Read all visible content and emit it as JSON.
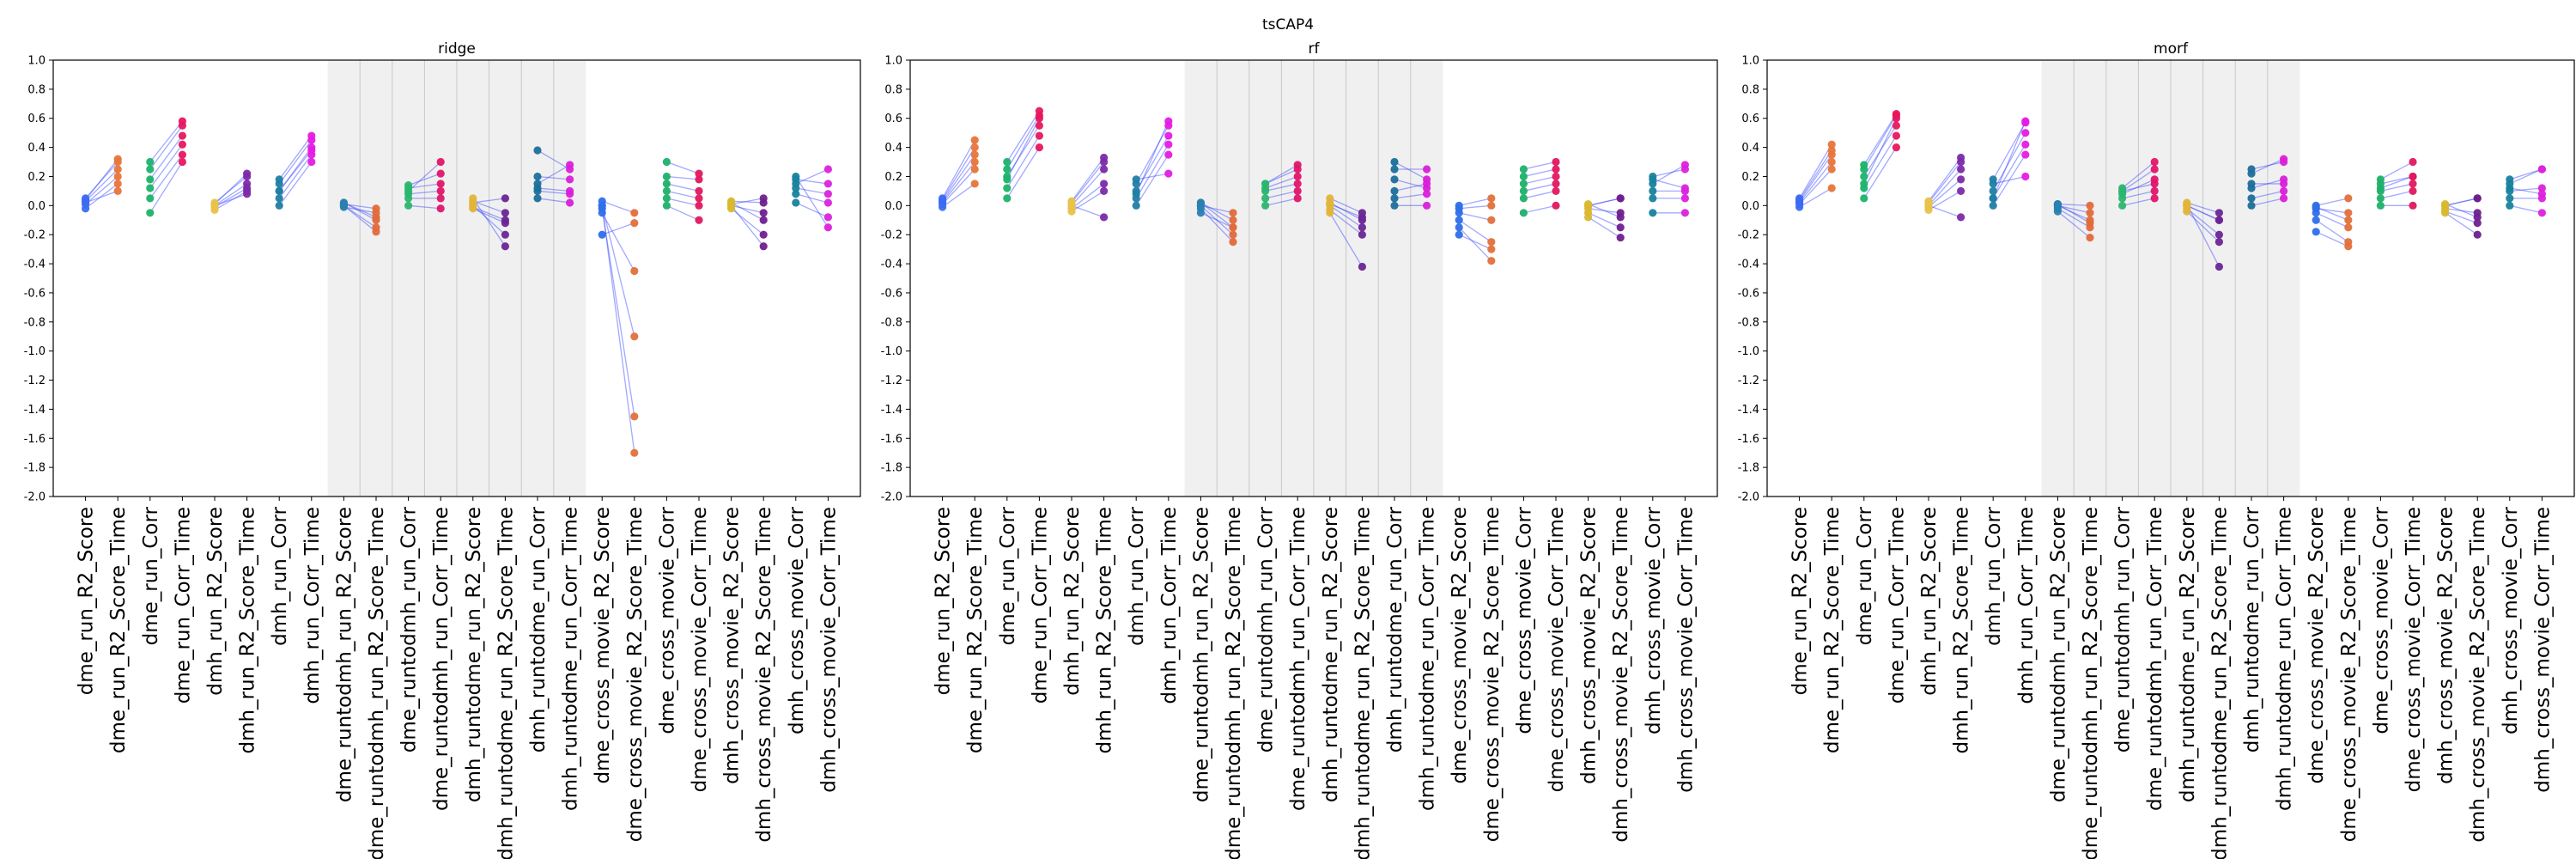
{
  "figure_title": "tsCAP4",
  "chart_data": [
    {
      "type": "scatter",
      "title": "ridge",
      "ylim": [
        -2.0,
        1.0
      ],
      "yticks": [
        "1.0",
        "0.8",
        "0.6",
        "0.4",
        "0.2",
        "0.0",
        "-0.2",
        "-0.4",
        "-0.6",
        "-0.8",
        "-1.0",
        "-1.2",
        "-1.4",
        "-1.6",
        "-1.8",
        "-2.0"
      ],
      "categories": [
        "dme_run_R2_Score",
        "dme_run_R2_Score_Time",
        "dme_run_Corr",
        "dme_run_Corr_Time",
        "dmh_run_R2_Score",
        "dmh_run_R2_Score_Time",
        "dmh_run_Corr",
        "dmh_run_Corr_Time",
        "dme_runtodmh_run_R2_Score",
        "dme_runtodmh_run_R2_Score_Time",
        "dme_runtodmh_run_Corr",
        "dme_runtodmh_run_Corr_Time",
        "dmh_runtodme_run_R2_Score",
        "dmh_runtodme_run_R2_Score_Time",
        "dmh_runtodme_run_Corr",
        "dmh_runtodme_run_Corr_Time",
        "dme_cross_movie_R2_Score",
        "dme_cross_movie_R2_Score_Time",
        "dme_cross_movie_Corr",
        "dme_cross_movie_Corr_Time",
        "dmh_cross_movie_R2_Score",
        "dmh_cross_movie_R2_Score_Time",
        "dmh_cross_movie_Corr",
        "dmh_cross_movie_Corr_Time"
      ],
      "shaded_categories": [
        8,
        15
      ],
      "paired": [
        [
          0,
          1
        ],
        [
          2,
          3
        ],
        [
          4,
          5
        ],
        [
          6,
          7
        ],
        [
          8,
          9
        ],
        [
          10,
          11
        ],
        [
          12,
          13
        ],
        [
          14,
          15
        ],
        [
          16,
          17
        ],
        [
          18,
          19
        ],
        [
          20,
          21
        ],
        [
          22,
          23
        ]
      ],
      "series": [
        {
          "values": [
            0.05,
            0.3,
            0.25,
            0.55,
            0.02,
            0.2,
            0.15,
            0.45,
            0.02,
            -0.1,
            0.12,
            0.15,
            0.03,
            -0.05,
            0.2,
            0.18,
            0.03,
            -0.05,
            0.2,
            0.18,
            0.03,
            0.02,
            0.18,
            0.15
          ]
        },
        {
          "values": [
            0.03,
            0.25,
            0.18,
            0.48,
            0.0,
            0.15,
            0.1,
            0.4,
            0.0,
            -0.15,
            0.08,
            0.1,
            -0.02,
            -0.12,
            0.12,
            0.1,
            0.0,
            -1.7,
            0.15,
            0.1,
            0.0,
            -0.05,
            0.12,
            0.08
          ]
        },
        {
          "values": [
            0.01,
            0.2,
            0.12,
            0.42,
            -0.01,
            0.12,
            0.05,
            0.35,
            -0.01,
            -0.05,
            0.05,
            0.05,
            0.0,
            -0.2,
            0.1,
            0.08,
            -0.02,
            -1.45,
            0.1,
            0.05,
            -0.02,
            -0.2,
            0.08,
            0.02
          ]
        },
        {
          "values": [
            -0.02,
            0.15,
            0.05,
            0.35,
            -0.03,
            0.1,
            0.0,
            0.3,
            0.0,
            -0.18,
            0.0,
            -0.02,
            0.05,
            -0.28,
            0.05,
            0.02,
            0.0,
            -0.9,
            0.05,
            0.0,
            0.02,
            -0.1,
            0.02,
            -0.08
          ]
        },
        {
          "values": [
            0.02,
            0.1,
            -0.05,
            0.3,
            0.0,
            0.08,
            0.1,
            0.38,
            0.01,
            -0.02,
            0.1,
            0.3,
            -0.01,
            -0.1,
            0.38,
            0.25,
            -0.05,
            -0.45,
            0.0,
            -0.1,
            0.0,
            -0.28,
            0.2,
            -0.15
          ]
        },
        {
          "values": [
            0.04,
            0.32,
            0.3,
            0.58,
            0.01,
            0.22,
            0.18,
            0.48,
            0.02,
            -0.08,
            0.14,
            0.22,
            0.02,
            0.05,
            0.15,
            0.28,
            -0.2,
            -0.12,
            0.3,
            0.22,
            0.01,
            0.05,
            0.15,
            0.25
          ]
        }
      ],
      "colors": [
        "#3b6cf2",
        "#e8753a",
        "#1cb36b",
        "#e8175d",
        "#e8c24a",
        "#7b2aa8",
        "#1f7ea3",
        "#e51be5",
        "#2a7fb0",
        "#e06a3a",
        "#2bb56f",
        "#e0156a",
        "#e0b53a",
        "#6a2594",
        "#1b6f9b",
        "#d91fd9",
        "#2f6fe8",
        "#e3703a",
        "#1fb06a",
        "#e0185e",
        "#d9b830",
        "#6f1f8f",
        "#18829d",
        "#dc22dc"
      ],
      "line_color": "#3040ff"
    },
    {
      "type": "scatter",
      "title": "rf",
      "ylim": [
        -2.0,
        1.0
      ],
      "yticks": [
        "1.0",
        "0.8",
        "0.6",
        "0.4",
        "0.2",
        "0.0",
        "-0.2",
        "-0.4",
        "-0.6",
        "-0.8",
        "-1.0",
        "-1.2",
        "-1.4",
        "-1.6",
        "-1.8",
        "-2.0"
      ],
      "categories": [
        "dme_run_R2_Score",
        "dme_run_R2_Score_Time",
        "dme_run_Corr",
        "dme_run_Corr_Time",
        "dmh_run_R2_Score",
        "dmh_run_R2_Score_Time",
        "dmh_run_Corr",
        "dmh_run_Corr_Time",
        "dme_runtodmh_run_R2_Score",
        "dme_runtodmh_run_R2_Score_Time",
        "dme_runtodmh_run_Corr",
        "dme_runtodmh_run_Corr_Time",
        "dmh_runtodme_run_R2_Score",
        "dmh_runtodme_run_R2_Score_Time",
        "dmh_runtodme_run_Corr",
        "dmh_runtodme_run_Corr_Time",
        "dme_cross_movie_R2_Score",
        "dme_cross_movie_R2_Score_Time",
        "dme_cross_movie_Corr",
        "dme_cross_movie_Corr_Time",
        "dmh_cross_movie_R2_Score",
        "dmh_cross_movie_R2_Score_Time",
        "dmh_cross_movie_Corr",
        "dmh_cross_movie_Corr_Time"
      ],
      "shaded_categories": [
        8,
        15
      ],
      "paired": [
        [
          0,
          1
        ],
        [
          2,
          3
        ],
        [
          4,
          5
        ],
        [
          6,
          7
        ],
        [
          8,
          9
        ],
        [
          10,
          11
        ],
        [
          12,
          13
        ],
        [
          14,
          15
        ],
        [
          16,
          17
        ],
        [
          18,
          19
        ],
        [
          20,
          21
        ],
        [
          22,
          23
        ]
      ],
      "series": [
        {
          "values": [
            0.05,
            0.45,
            0.3,
            0.65,
            0.03,
            0.33,
            0.15,
            0.55,
            0.02,
            -0.1,
            0.15,
            0.25,
            0.05,
            -0.05,
            0.25,
            0.25,
            0.0,
            0.05,
            0.25,
            0.3,
            0.0,
            0.05,
            0.2,
            0.25
          ]
        },
        {
          "values": [
            0.03,
            0.35,
            0.2,
            0.55,
            0.0,
            0.25,
            0.1,
            0.48,
            0.0,
            -0.2,
            0.1,
            0.15,
            0.0,
            -0.15,
            0.1,
            0.15,
            -0.05,
            -0.1,
            0.15,
            0.2,
            -0.02,
            -0.05,
            0.1,
            0.1
          ]
        },
        {
          "values": [
            0.01,
            0.25,
            0.12,
            0.48,
            -0.02,
            0.15,
            0.05,
            0.42,
            -0.02,
            -0.25,
            0.05,
            0.1,
            -0.03,
            -0.2,
            0.05,
            0.08,
            -0.1,
            -0.25,
            0.05,
            0.1,
            -0.05,
            -0.15,
            0.05,
            0.05
          ]
        },
        {
          "values": [
            -0.01,
            0.15,
            0.05,
            0.4,
            -0.04,
            0.1,
            0.0,
            0.35,
            -0.05,
            -0.15,
            0.0,
            0.05,
            -0.05,
            -0.42,
            0.0,
            0.0,
            -0.15,
            -0.38,
            -0.05,
            0.0,
            -0.08,
            -0.22,
            -0.05,
            -0.05
          ]
        },
        {
          "values": [
            0.02,
            0.3,
            0.18,
            0.6,
            0.0,
            -0.08,
            0.18,
            0.22,
            0.0,
            -0.05,
            0.15,
            0.28,
            0.02,
            -0.1,
            0.3,
            0.18,
            -0.2,
            -0.3,
            0.1,
            0.15,
            0.0,
            0.05,
            0.15,
            0.28
          ]
        },
        {
          "values": [
            0.04,
            0.4,
            0.25,
            0.62,
            0.02,
            0.3,
            0.08,
            0.58,
            0.02,
            -0.15,
            0.12,
            0.2,
            0.01,
            -0.08,
            0.18,
            0.12,
            -0.02,
            0.0,
            0.2,
            0.25,
            0.01,
            -0.08,
            0.18,
            0.12
          ]
        }
      ],
      "colors": [
        "#3b6cf2",
        "#e8753a",
        "#1cb36b",
        "#e8175d",
        "#e8c24a",
        "#7b2aa8",
        "#1f7ea3",
        "#e51be5",
        "#2a7fb0",
        "#e06a3a",
        "#2bb56f",
        "#e0156a",
        "#e0b53a",
        "#6a2594",
        "#1b6f9b",
        "#d91fd9",
        "#2f6fe8",
        "#e3703a",
        "#1fb06a",
        "#e0185e",
        "#d9b830",
        "#6f1f8f",
        "#18829d",
        "#dc22dc"
      ],
      "line_color": "#3040ff"
    },
    {
      "type": "scatter",
      "title": "morf",
      "ylim": [
        -2.0,
        1.0
      ],
      "yticks": [
        "1.0",
        "0.8",
        "0.6",
        "0.4",
        "0.2",
        "0.0",
        "-0.2",
        "-0.4",
        "-0.6",
        "-0.8",
        "-1.0",
        "-1.2",
        "-1.4",
        "-1.6",
        "-1.8",
        "-2.0"
      ],
      "categories": [
        "dme_run_R2_Score",
        "dme_run_R2_Score_Time",
        "dme_run_Corr",
        "dme_run_Corr_Time",
        "dmh_run_R2_Score",
        "dmh_run_R2_Score_Time",
        "dmh_run_Corr",
        "dmh_run_Corr_Time",
        "dme_runtodmh_run_R2_Score",
        "dme_runtodmh_run_R2_Score_Time",
        "dme_runtodmh_run_Corr",
        "dme_runtodmh_run_Corr_Time",
        "dmh_runtodme_run_R2_Score",
        "dmh_runtodme_run_R2_Score_Time",
        "dmh_runtodme_run_Corr",
        "dmh_runtodme_run_Corr_Time",
        "dme_cross_movie_R2_Score",
        "dme_cross_movie_R2_Score_Time",
        "dme_cross_movie_Corr",
        "dme_cross_movie_Corr_Time",
        "dmh_cross_movie_R2_Score",
        "dmh_cross_movie_R2_Score_Time",
        "dmh_cross_movie_Corr",
        "dmh_cross_movie_Corr_Time"
      ],
      "shaded_categories": [
        8,
        15
      ],
      "paired": [
        [
          0,
          1
        ],
        [
          2,
          3
        ],
        [
          4,
          5
        ],
        [
          6,
          7
        ],
        [
          8,
          9
        ],
        [
          10,
          11
        ],
        [
          12,
          13
        ],
        [
          14,
          15
        ],
        [
          16,
          17
        ],
        [
          18,
          19
        ],
        [
          20,
          21
        ],
        [
          22,
          23
        ]
      ],
      "series": [
        {
          "values": [
            0.05,
            0.42,
            0.28,
            0.63,
            0.03,
            0.33,
            0.18,
            0.57,
            0.01,
            0.0,
            0.12,
            0.3,
            0.02,
            -0.05,
            0.25,
            0.3,
            0.0,
            0.05,
            0.18,
            0.3,
            0.0,
            0.05,
            0.18,
            0.25
          ]
        },
        {
          "values": [
            0.03,
            0.35,
            0.2,
            0.55,
            0.0,
            0.25,
            0.1,
            0.5,
            0.0,
            -0.1,
            0.08,
            0.18,
            0.0,
            -0.1,
            0.12,
            0.18,
            -0.02,
            -0.05,
            0.12,
            0.2,
            -0.02,
            -0.05,
            0.1,
            0.12
          ]
        },
        {
          "values": [
            0.01,
            0.25,
            0.12,
            0.48,
            -0.01,
            0.18,
            0.05,
            0.42,
            -0.02,
            -0.15,
            0.05,
            0.1,
            -0.02,
            -0.2,
            0.05,
            0.1,
            -0.05,
            -0.15,
            0.05,
            0.1,
            -0.04,
            -0.12,
            0.05,
            0.05
          ]
        },
        {
          "values": [
            -0.01,
            0.12,
            0.05,
            0.4,
            -0.03,
            0.1,
            0.0,
            0.35,
            -0.04,
            -0.22,
            0.0,
            0.05,
            -0.04,
            -0.25,
            0.0,
            0.05,
            -0.1,
            -0.25,
            0.0,
            0.0,
            -0.05,
            -0.2,
            0.0,
            -0.05
          ]
        },
        {
          "values": [
            0.02,
            0.3,
            0.15,
            0.6,
            0.0,
            -0.08,
            0.15,
            0.2,
            0.0,
            -0.05,
            0.1,
            0.25,
            0.01,
            -0.42,
            0.22,
            0.32,
            -0.18,
            -0.28,
            0.1,
            0.15,
            0.0,
            0.05,
            0.15,
            0.25
          ]
        },
        {
          "values": [
            0.04,
            0.38,
            0.25,
            0.62,
            0.02,
            0.3,
            0.05,
            0.58,
            0.01,
            -0.12,
            0.1,
            0.15,
            0.0,
            -0.1,
            0.15,
            0.15,
            -0.01,
            -0.1,
            0.15,
            0.2,
            0.01,
            -0.08,
            0.12,
            0.08
          ]
        }
      ],
      "colors": [
        "#3b6cf2",
        "#e8753a",
        "#1cb36b",
        "#e8175d",
        "#e8c24a",
        "#7b2aa8",
        "#1f7ea3",
        "#e51be5",
        "#2a7fb0",
        "#e06a3a",
        "#2bb56f",
        "#e0156a",
        "#e0b53a",
        "#6a2594",
        "#1b6f9b",
        "#d91fd9",
        "#2f6fe8",
        "#e3703a",
        "#1fb06a",
        "#e0185e",
        "#d9b830",
        "#6f1f8f",
        "#18829d",
        "#dc22dc"
      ],
      "line_color": "#3040ff"
    }
  ]
}
